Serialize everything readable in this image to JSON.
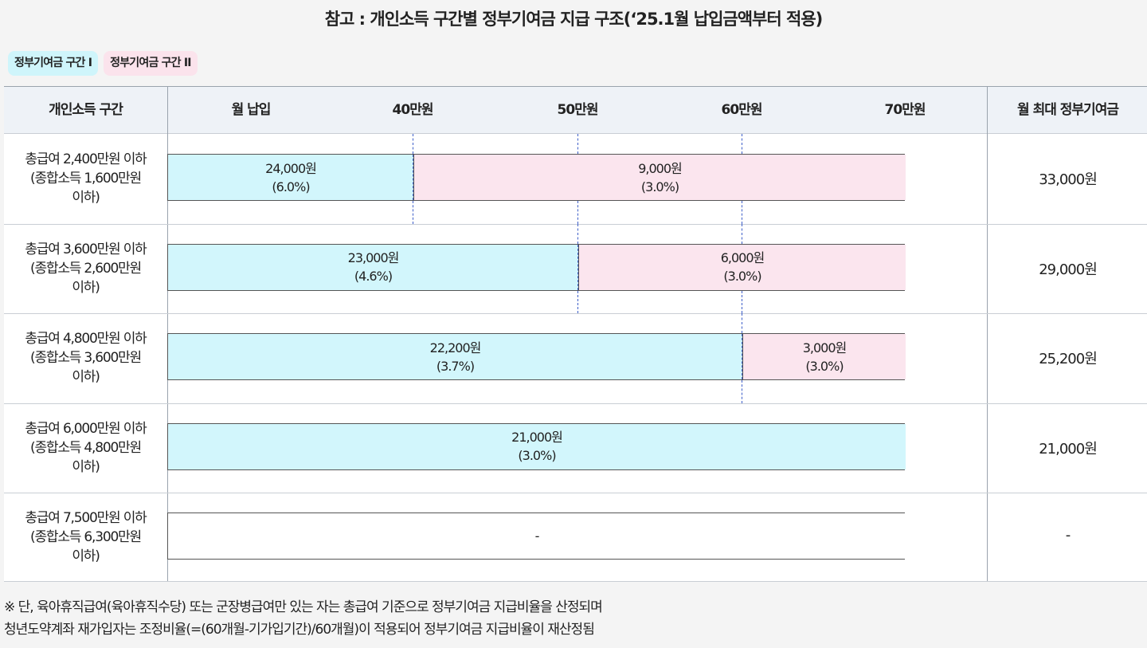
{
  "title": "참고 : 개인소득 구간별 정부기여금 지급 구조(‘25.1월 납입금액부터 적용)",
  "legend": {
    "tier1": "정부기여금 구간 I",
    "tier2": "정부기여금 구간 II"
  },
  "colors": {
    "tier1": "#d2f6fc",
    "tier2": "#fbe5ee",
    "header_bg": "#eef2f7",
    "marker_line": "#3e5fc9"
  },
  "header": {
    "income": "개인소득 구간",
    "monthly": "월 납입",
    "ticks": [
      "40만원",
      "50만원",
      "60만원",
      "70만원"
    ],
    "max": "월 최대 정부기여금"
  },
  "rows": [
    {
      "label": [
        "총급여 2,400만원 이하",
        "(종합소득 1,600만원",
        "이하)"
      ],
      "segments": [
        {
          "tier": 1,
          "to": "40만원",
          "amount": "24,000원",
          "rate": "(6.0%)"
        },
        {
          "tier": 2,
          "to": "70만원",
          "amount": "9,000원",
          "rate": "(3.0%)"
        }
      ],
      "max": "33,000원"
    },
    {
      "label": [
        "총급여 3,600만원 이하",
        "(종합소득 2,600만원",
        "이하)"
      ],
      "segments": [
        {
          "tier": 1,
          "to": "50만원",
          "amount": "23,000원",
          "rate": "(4.6%)"
        },
        {
          "tier": 2,
          "to": "70만원",
          "amount": "6,000원",
          "rate": "(3.0%)"
        }
      ],
      "max": "29,000원"
    },
    {
      "label": [
        "총급여 4,800만원 이하",
        "(종합소득 3,600만원",
        "이하)"
      ],
      "segments": [
        {
          "tier": 1,
          "to": "60만원",
          "amount": "22,200원",
          "rate": "(3.7%)"
        },
        {
          "tier": 2,
          "to": "70만원",
          "amount": "3,000원",
          "rate": "(3.0%)"
        }
      ],
      "max": "25,200원"
    },
    {
      "label": [
        "총급여 6,000만원 이하",
        "(종합소득 4,800만원",
        "이하)"
      ],
      "segments": [
        {
          "tier": 1,
          "to": "70만원",
          "amount": "21,000원",
          "rate": "(3.0%)"
        }
      ],
      "max": "21,000원"
    },
    {
      "label": [
        "총급여 7,500만원 이하",
        "(종합소득 6,300만원",
        "이하)"
      ],
      "segments": [
        {
          "tier": 0,
          "to": "70만원",
          "amount": "-",
          "rate": ""
        }
      ],
      "max": "-"
    }
  ],
  "notes": [
    "※ 단, 육아휴직급여(육아휴직수당) 또는 군장병급여만 있는 자는 총급여 기준으로 정부기여금 지급비율을 산정되며",
    "청년도약계좌 재가입자는 조정비율(=(60개월-기가입기간)/60개월)이 적용되어 정부기여금 지급비율이 재산정됨"
  ]
}
